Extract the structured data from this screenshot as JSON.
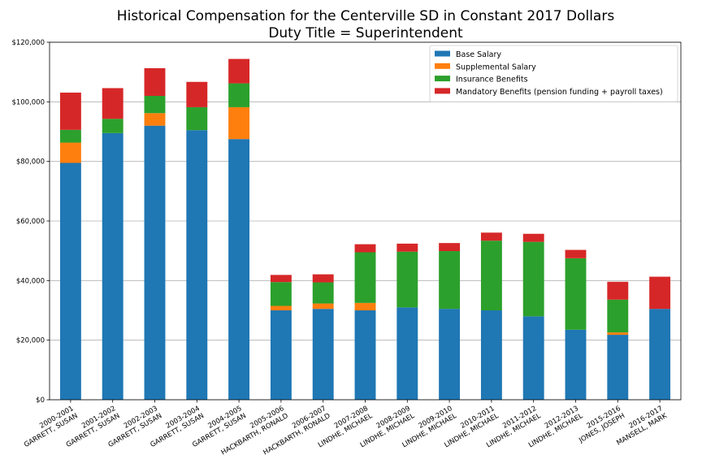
{
  "chart_data": {
    "type": "bar",
    "stacked": true,
    "title": "Historical Compensation for the Centerville SD in Constant 2017 Dollars",
    "subtitle": "Duty Title = Superintendent",
    "xlabel": "",
    "ylabel": "",
    "ylim": [
      0,
      120000
    ],
    "yticks": [
      0,
      20000,
      40000,
      60000,
      80000,
      100000,
      120000
    ],
    "ytick_labels": [
      "$0",
      "$20,000",
      "$40,000",
      "$60,000",
      "$80,000",
      "$100,000",
      "$120,000"
    ],
    "grid": "y",
    "legend_position": "top-right",
    "categories": [
      [
        "2000-2001",
        "GARRETT, SUSAN"
      ],
      [
        "2001-2002",
        "GARRETT, SUSAN"
      ],
      [
        "2002-2003",
        "GARRETT, SUSAN"
      ],
      [
        "2003-2004",
        "GARRETT, SUSAN"
      ],
      [
        "2004-2005",
        "GARRETT, SUSAN"
      ],
      [
        "2005-2006",
        "HACKBARTH, RONALD"
      ],
      [
        "2006-2007",
        "HACKBARTH, RONALD"
      ],
      [
        "2007-2008",
        "LINDHE, MICHAEL"
      ],
      [
        "2008-2009",
        "LINDHE, MICHAEL"
      ],
      [
        "2009-2010",
        "LINDHE, MICHAEL"
      ],
      [
        "2010-2011",
        "LINDHE, MICHAEL"
      ],
      [
        "2011-2012",
        "LINDHE, MICHAEL"
      ],
      [
        "2012-2013",
        "LINDHE, MICHAEL"
      ],
      [
        "2015-2016",
        "JONES, JOSEPH"
      ],
      [
        "2016-2017",
        "MANSELL, MARK"
      ]
    ],
    "series": [
      {
        "name": "Base Salary",
        "color": "#1f77b4",
        "values": [
          79500,
          89500,
          92000,
          90500,
          87500,
          30000,
          30500,
          30000,
          31000,
          30500,
          30000,
          28000,
          23500,
          21800,
          30500
        ]
      },
      {
        "name": "Supplemental Salary",
        "color": "#ff7f0e",
        "values": [
          6800,
          0,
          4200,
          0,
          10700,
          1500,
          1800,
          2500,
          0,
          0,
          0,
          0,
          0,
          800,
          0
        ]
      },
      {
        "name": "Insurance Benefits",
        "color": "#2ca02c",
        "values": [
          4300,
          4800,
          5800,
          7700,
          8000,
          8000,
          7100,
          17000,
          18700,
          19400,
          23400,
          25000,
          24000,
          11000,
          0
        ]
      },
      {
        "name": "Mandatory Benefits (pension funding + payroll taxes)",
        "color": "#d62728",
        "values": [
          12500,
          10300,
          9300,
          8500,
          8200,
          2400,
          2700,
          2700,
          2700,
          2700,
          2700,
          2700,
          2800,
          6000,
          10800
        ]
      }
    ]
  }
}
